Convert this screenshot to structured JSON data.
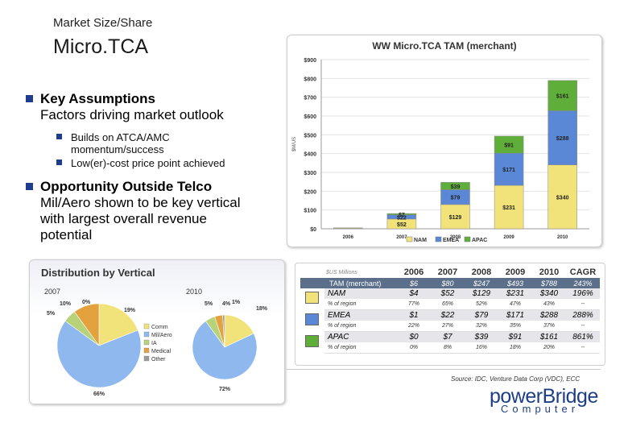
{
  "header": {
    "subtitle": "Market Size/Share",
    "title": "Micro.TCA"
  },
  "bullets": [
    {
      "heading": "Key Assumptions",
      "sub": "Factors driving market outlook",
      "items": [
        "Builds on ATCA/AMC momentum/success",
        "Low(er)-cost price point achieved"
      ]
    },
    {
      "heading": "Opportunity Outside Telco",
      "sub": "Mil/Aero shown to be key vertical with largest overall revenue potential",
      "items": []
    }
  ],
  "bar_chart_title": "WW Micro.TCA TAM (merchant)",
  "pie_panel_title": "Distribution by Vertical",
  "table": {
    "units": "$US Millions",
    "header": [
      "2006",
      "2007",
      "2008",
      "2009",
      "2010",
      "CAGR"
    ],
    "tam_label": "TAM (merchant)",
    "tam": [
      "$6",
      "$80",
      "$247",
      "$493",
      "$788",
      "243%"
    ],
    "pct_label": "% of region",
    "regions": [
      {
        "name": "NAM",
        "color": "#f2e27a",
        "values": [
          "$4",
          "$52",
          "$129",
          "$231",
          "$340",
          "196%"
        ],
        "pct": [
          "77%",
          "65%",
          "52%",
          "47%",
          "43%",
          "--"
        ]
      },
      {
        "name": "EMEA",
        "color": "#5b88d6",
        "values": [
          "$1",
          "$22",
          "$79",
          "$171",
          "$288",
          "288%"
        ],
        "pct": [
          "22%",
          "27%",
          "32%",
          "35%",
          "37%",
          "--"
        ]
      },
      {
        "name": "APAC",
        "color": "#5fae3a",
        "values": [
          "$0",
          "$7",
          "$39",
          "$91",
          "$161",
          "861%"
        ],
        "pct": [
          "0%",
          "8%",
          "16%",
          "18%",
          "20%",
          "--"
        ]
      }
    ]
  },
  "source": "Source: IDC, Venture Data Corp (VDC), ECC",
  "logo": {
    "line1": "powerBridge",
    "line2": "Computer"
  },
  "chart_data": [
    {
      "type": "bar",
      "stacked": true,
      "title": "WW Micro.TCA TAM (merchant)",
      "ylabel": "$M/US",
      "categories": [
        "2006",
        "2007",
        "2008",
        "2009",
        "2010"
      ],
      "ylim": [
        0,
        900
      ],
      "yticks": [
        "$0",
        "$100",
        "$200",
        "$300",
        "$400",
        "$500",
        "$600",
        "$700",
        "$800",
        "$900"
      ],
      "series": [
        {
          "name": "NAM",
          "color": "#f2e27a",
          "values": [
            4,
            52,
            129,
            231,
            340
          ],
          "labels": [
            "",
            "$52",
            "$129",
            "$231",
            "$340"
          ]
        },
        {
          "name": "EMEA",
          "color": "#5b88d6",
          "values": [
            1,
            22,
            79,
            171,
            288
          ],
          "labels": [
            "",
            "$22",
            "$79",
            "$171",
            "$288"
          ]
        },
        {
          "name": "APAC",
          "color": "#5fae3a",
          "values": [
            0,
            7,
            39,
            91,
            161
          ],
          "labels": [
            "",
            "$7",
            "$39",
            "$91",
            "$161"
          ]
        }
      ],
      "legend": "bottom",
      "grid": true
    },
    {
      "type": "pie",
      "title": "2007",
      "categories": [
        "Comm",
        "Mil/Aero",
        "IA",
        "Medical",
        "Other"
      ],
      "values": [
        19,
        66,
        5,
        10,
        0
      ],
      "labels": [
        "19%",
        "66%",
        "5%",
        "10%",
        "0%"
      ],
      "colors": [
        "#f2e27a",
        "#8fb8ee",
        "#b8d27a",
        "#e3a23e",
        "#9a9a9a"
      ]
    },
    {
      "type": "pie",
      "title": "2010",
      "categories": [
        "Comm",
        "Mil/Aero",
        "IA",
        "Medical",
        "Other"
      ],
      "values": [
        18,
        72,
        5,
        4,
        1
      ],
      "labels": [
        "18%",
        "72%",
        "5%",
        "4%",
        "1%"
      ],
      "colors": [
        "#f2e27a",
        "#8fb8ee",
        "#b8d27a",
        "#e3a23e",
        "#9a9a9a"
      ]
    }
  ]
}
